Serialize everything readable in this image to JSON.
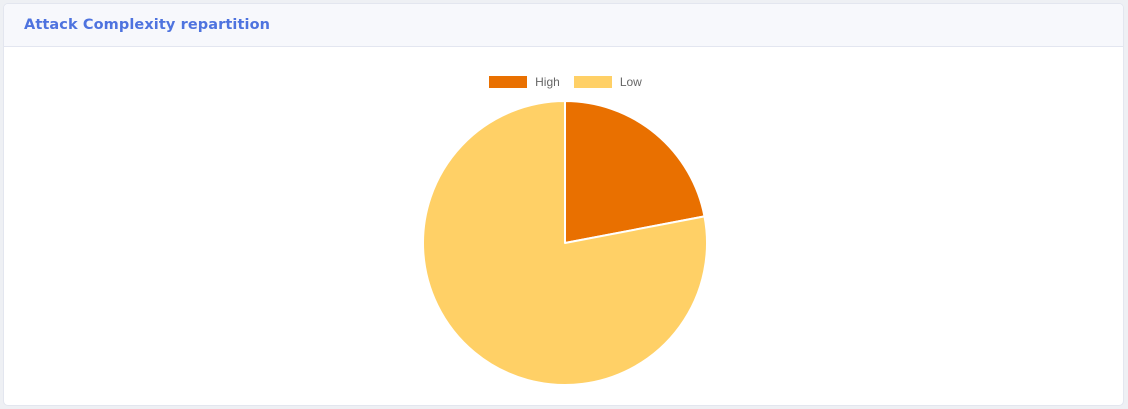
{
  "card": {
    "title": "Attack Complexity repartition"
  },
  "chart_data": {
    "type": "pie",
    "categories": [
      "High",
      "Low"
    ],
    "values": [
      22,
      78
    ],
    "colors": [
      "#e97000",
      "#ffd066"
    ],
    "legend_position": "top",
    "slice_border_color": "#ffffff"
  }
}
